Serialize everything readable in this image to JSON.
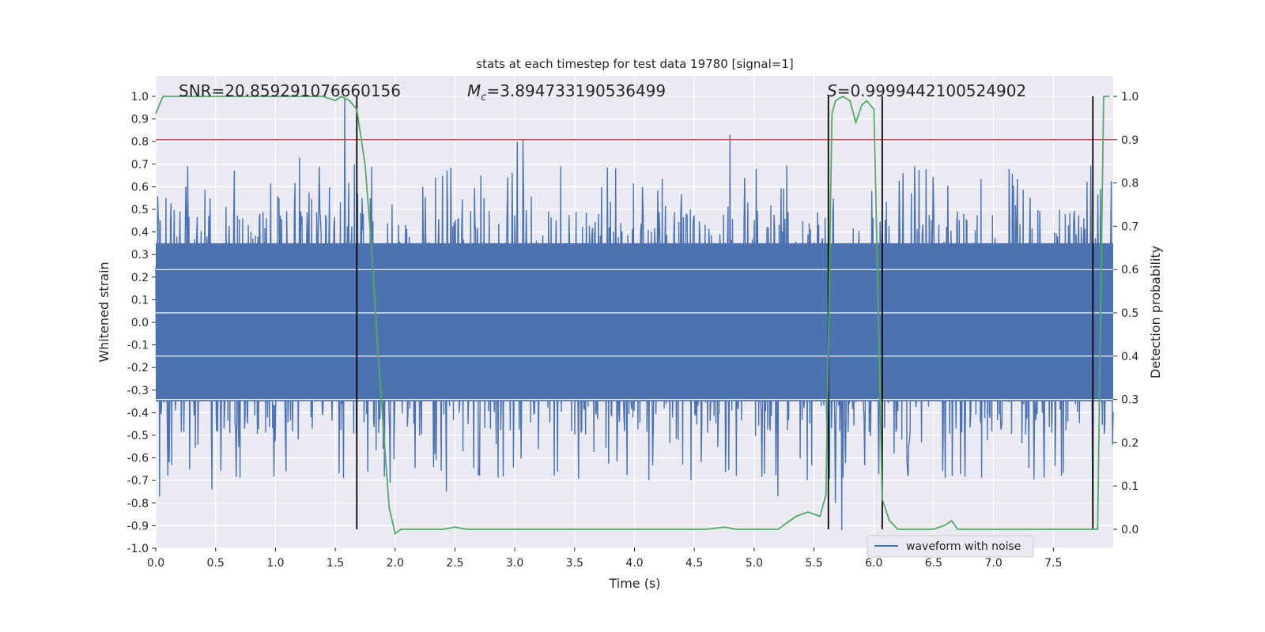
{
  "chart_data": {
    "type": "line",
    "title": "stats at each timestep for test data 19780 [signal=1]",
    "xlabel": "Time (s)",
    "ylabel": "Whitened strain",
    "y2label": "Detection probability",
    "xlim": [
      0,
      8.0
    ],
    "ylim": [
      -1.0,
      1.0
    ],
    "y2lim": [
      -0.04,
      1.0
    ],
    "x_ticks": [
      "0.0",
      "0.5",
      "1.0",
      "1.5",
      "2.0",
      "2.5",
      "3.0",
      "3.5",
      "4.0",
      "4.5",
      "5.0",
      "5.5",
      "6.0",
      "6.5",
      "7.0",
      "7.5"
    ],
    "y_ticks": [
      "-1.0",
      "-0.9",
      "-0.8",
      "-0.7",
      "-0.6",
      "-0.5",
      "-0.4",
      "-0.3",
      "-0.2",
      "-0.1",
      "0.0",
      "0.1",
      "0.2",
      "0.3",
      "0.4",
      "0.5",
      "0.6",
      "0.7",
      "0.8",
      "0.9",
      "1.0"
    ],
    "y2_ticks": [
      "0.0",
      "0.1",
      "0.2",
      "0.3",
      "0.4",
      "0.5",
      "0.6",
      "0.7",
      "0.8",
      "0.9",
      "1.0"
    ],
    "grid": true,
    "legend": {
      "position": "lower-right",
      "entries": [
        "waveform with noise"
      ]
    },
    "annotations": {
      "snr": "SNR=20.859291076660156",
      "mc_symbol": "M",
      "mc_sub": "c",
      "mc_value": "=3.894733190536499",
      "s_symbol": "S",
      "s_value": "=0.9999442100524902"
    },
    "series": [
      {
        "name": "waveform with noise",
        "color": "#4c72b0",
        "axis": "left",
        "description": "dense whitened strain noise, core roughly between -0.35 and 0.35",
        "envelope_low": -0.35,
        "envelope_high": 0.35,
        "x_range": [
          0,
          8.0
        ],
        "peaks": [
          {
            "x": 0.03,
            "y": -0.77
          },
          {
            "x": 1.58,
            "y": 0.99
          },
          {
            "x": 3.02,
            "y": 0.8
          },
          {
            "x": 3.07,
            "y": 0.81
          },
          {
            "x": 4.8,
            "y": 0.83
          },
          {
            "x": 2.43,
            "y": -0.75
          },
          {
            "x": 0.47,
            "y": -0.74
          },
          {
            "x": 5.2,
            "y": -0.77
          },
          {
            "x": 5.73,
            "y": -0.92
          },
          {
            "x": 5.68,
            "y": -0.8
          },
          {
            "x": 7.83,
            "y": -0.88
          },
          {
            "x": 1.2,
            "y": 0.73
          },
          {
            "x": 1.57,
            "y": -0.69
          },
          {
            "x": 1.96,
            "y": -0.71
          }
        ]
      },
      {
        "name": "detection probability",
        "color": "#55a868",
        "axis": "right",
        "x": [
          0.0,
          0.06,
          0.2,
          0.4,
          0.6,
          0.8,
          1.0,
          1.2,
          1.4,
          1.5,
          1.55,
          1.62,
          1.68,
          1.75,
          1.8,
          1.85,
          1.9,
          1.95,
          2.0,
          2.05,
          2.1,
          2.2,
          2.4,
          2.5,
          2.6,
          2.8,
          3.0,
          3.2,
          3.4,
          3.6,
          3.8,
          4.0,
          4.2,
          4.4,
          4.6,
          4.75,
          4.85,
          5.0,
          5.2,
          5.35,
          5.45,
          5.55,
          5.6,
          5.65,
          5.68,
          5.74,
          5.8,
          5.85,
          5.9,
          5.94,
          6.0,
          6.04,
          6.07,
          6.13,
          6.2,
          6.27,
          6.35,
          6.42,
          6.5,
          6.6,
          6.65,
          6.7,
          6.78,
          7.0,
          7.3,
          7.6,
          7.8,
          7.87,
          7.92,
          7.97
        ],
        "values": [
          0.96,
          1.0,
          1.0,
          1.0,
          1.0,
          1.0,
          1.0,
          1.0,
          1.0,
          0.99,
          1.0,
          0.99,
          0.97,
          0.84,
          0.66,
          0.44,
          0.24,
          0.05,
          -0.01,
          0.0,
          0.0,
          0.0,
          0.0,
          0.005,
          0.0,
          0.0,
          0.0,
          0.0,
          0.0,
          0.0,
          0.0,
          0.0,
          0.0,
          0.0,
          0.0,
          0.005,
          0.0,
          0.0,
          0.0,
          0.03,
          0.04,
          0.03,
          0.08,
          0.96,
          0.99,
          1.0,
          0.99,
          0.94,
          0.98,
          0.99,
          0.97,
          0.48,
          0.07,
          0.02,
          0.0,
          0.0,
          0.0,
          0.0,
          0.0,
          0.01,
          0.02,
          0.0,
          0.0,
          0.0,
          0.0,
          0.0,
          0.0,
          0.0,
          1.0,
          1.0
        ]
      }
    ],
    "threshold": {
      "axis": "right",
      "value": 0.9,
      "color": "#c44e52"
    },
    "vlines": [
      1.68,
      5.62,
      6.07,
      7.83
    ],
    "vline_color": "#000000"
  }
}
